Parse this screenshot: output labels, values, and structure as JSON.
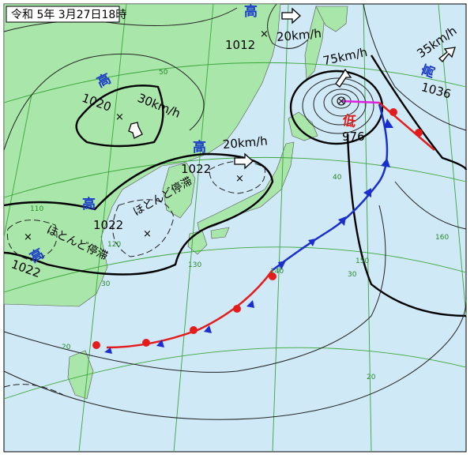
{
  "header": {
    "title": "令和 5年 3月27日18時"
  },
  "highs": [
    {
      "symbol": "高",
      "pressure": "1012"
    },
    {
      "symbol": "高",
      "pressure": "1020"
    },
    {
      "symbol": "高",
      "pressure": "1022"
    },
    {
      "symbol": "高",
      "pressure": "1022"
    },
    {
      "symbol": "高",
      "pressure": "1022"
    },
    {
      "symbol": "高",
      "pressure": "1036"
    }
  ],
  "lows": [
    {
      "symbol": "低",
      "pressure": "976"
    }
  ],
  "motions": [
    "20km/h",
    "30km/h",
    "20km/h",
    "75km/h",
    "35km/h"
  ],
  "notes": [
    "ほとんど停滞",
    "ほとんど停滞"
  ],
  "grid_labels": [
    "50",
    "40",
    "30",
    "20",
    "20",
    "30",
    "110",
    "120",
    "130",
    "140",
    "150",
    "160"
  ]
}
